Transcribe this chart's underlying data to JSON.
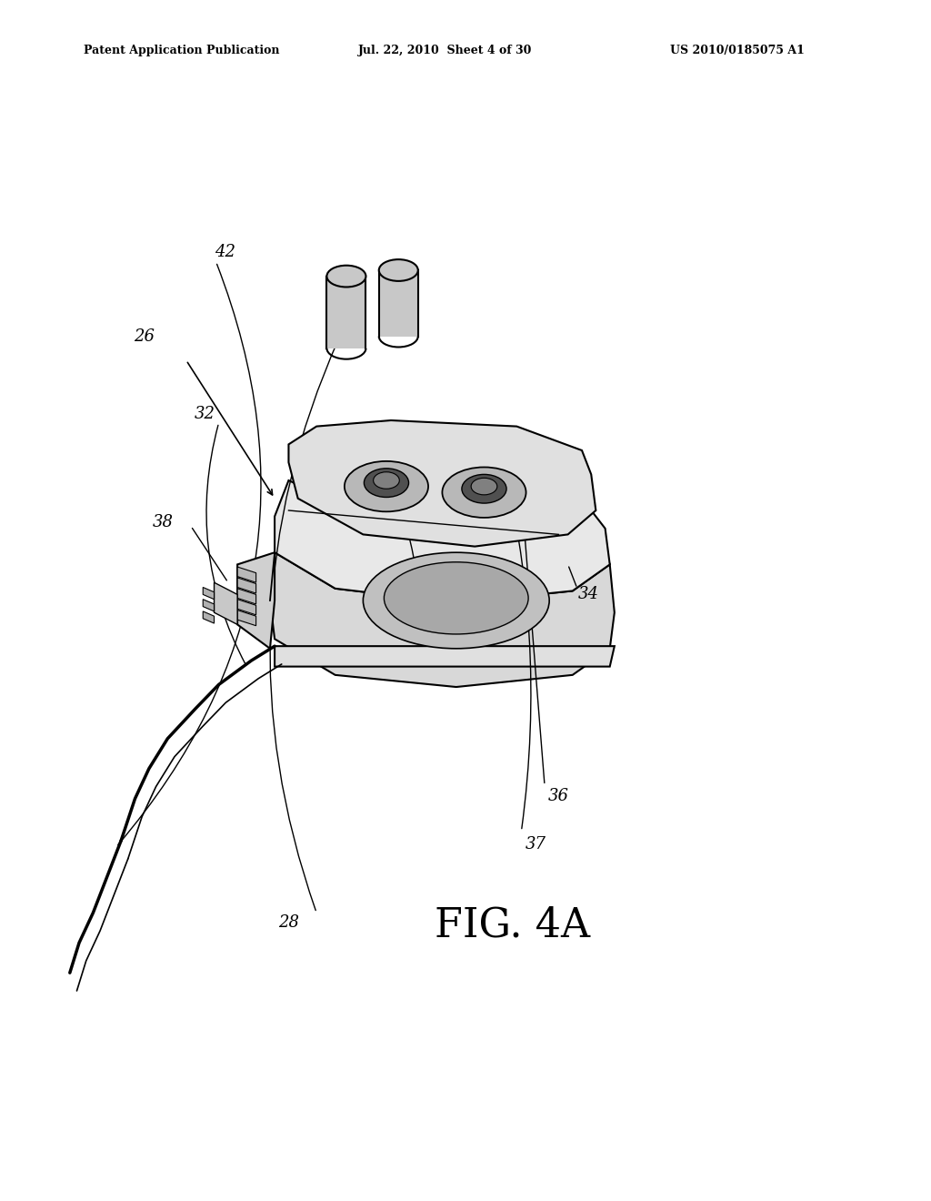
{
  "title": "FIG. 4A",
  "header_left": "Patent Application Publication",
  "header_mid": "Jul. 22, 2010  Sheet 4 of 30",
  "header_right": "US 2010/0185075 A1",
  "background_color": "#ffffff",
  "line_color": "#000000"
}
